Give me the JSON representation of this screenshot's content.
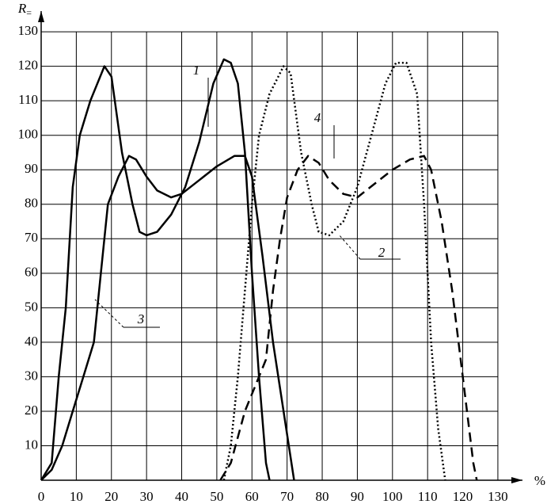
{
  "chart_data": {
    "type": "line",
    "y_label": "R",
    "y_label_sub": "=",
    "x_label": "%",
    "xlim": [
      0,
      137
    ],
    "ylim": [
      0,
      136
    ],
    "xticks": [
      0,
      10,
      20,
      30,
      40,
      50,
      60,
      70,
      80,
      90,
      100,
      110,
      120,
      130
    ],
    "yticks": [
      10,
      20,
      30,
      40,
      50,
      60,
      70,
      80,
      90,
      100,
      110,
      120,
      130
    ],
    "grid": true,
    "series": [
      {
        "name": "1",
        "color": "#000",
        "style": "solid",
        "x": [
          0,
          3,
          5,
          7,
          9,
          11,
          14,
          18,
          20,
          23,
          26,
          28,
          30,
          33,
          37,
          41,
          45,
          49,
          52,
          54,
          56,
          58,
          60,
          62,
          64,
          65
        ],
        "values": [
          0,
          5,
          30,
          50,
          85,
          100,
          110,
          120,
          117,
          95,
          80,
          72,
          71,
          72,
          77,
          85,
          98,
          115,
          122,
          121,
          115,
          95,
          60,
          30,
          5,
          0
        ]
      },
      {
        "name": "2",
        "color": "#000",
        "style": "dotted",
        "x": [
          52,
          54,
          56,
          58,
          60,
          62,
          65,
          69,
          71,
          74,
          77,
          79,
          82,
          86,
          90,
          94,
          98,
          101,
          104,
          107,
          109,
          111,
          113,
          115
        ],
        "values": [
          0,
          10,
          30,
          55,
          80,
          100,
          112,
          120,
          118,
          95,
          80,
          72,
          71,
          75,
          85,
          100,
          115,
          121,
          121,
          112,
          80,
          40,
          15,
          0
        ]
      },
      {
        "name": "3",
        "color": "#000",
        "style": "solid",
        "x": [
          0,
          3,
          6,
          9,
          12,
          15,
          17,
          19,
          22,
          25,
          27,
          30,
          33,
          37,
          40,
          45,
          50,
          55,
          58,
          60,
          63,
          66,
          69,
          72
        ],
        "values": [
          0,
          3,
          10,
          20,
          30,
          40,
          60,
          80,
          88,
          94,
          93,
          88,
          84,
          82,
          83,
          87,
          91,
          94,
          94,
          88,
          65,
          40,
          20,
          0
        ]
      },
      {
        "name": "4",
        "color": "#000",
        "style": "dashed",
        "x": [
          51,
          54,
          58,
          62,
          64,
          66,
          68,
          70,
          73,
          76,
          79,
          82,
          86,
          90,
          95,
          100,
          105,
          109,
          111,
          114,
          117,
          120,
          123,
          124
        ],
        "values": [
          0,
          5,
          20,
          30,
          35,
          55,
          70,
          82,
          90,
          94,
          92,
          87,
          83,
          82,
          86,
          90,
          93,
          94,
          90,
          75,
          55,
          30,
          5,
          0
        ]
      }
    ]
  }
}
